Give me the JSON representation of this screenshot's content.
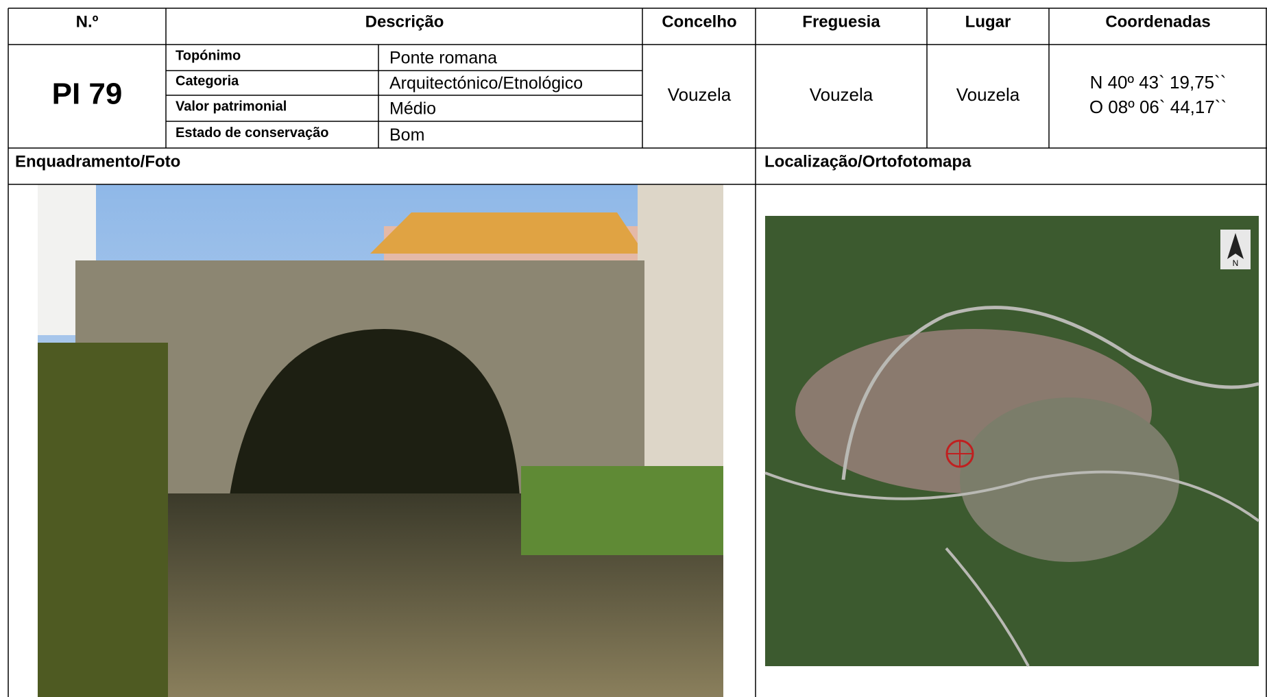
{
  "header": {
    "number": "N.º",
    "description": "Descrição",
    "concelho": "Concelho",
    "freguesia": "Freguesia",
    "lugar": "Lugar",
    "coordenadas": "Coordenadas"
  },
  "record": {
    "number": "PI 79",
    "fields": [
      [
        "Topónimo",
        "Ponte romana"
      ],
      [
        "Categoria",
        "Arquitectónico/Etnológico"
      ],
      [
        "Valor patrimonial",
        "Médio"
      ],
      [
        "Estado de conservação",
        "Bom"
      ]
    ],
    "concelho": "Vouzela",
    "freguesia": "Vouzela",
    "lugar": "Vouzela",
    "coordenadas": [
      "N 40º 43` 19,75``",
      "O 08º 06` 44,17``"
    ]
  },
  "sections": {
    "photo": "Enquadramento/Foto",
    "map": "Localização/Ortofotomapa"
  },
  "map": {
    "north": "N"
  }
}
